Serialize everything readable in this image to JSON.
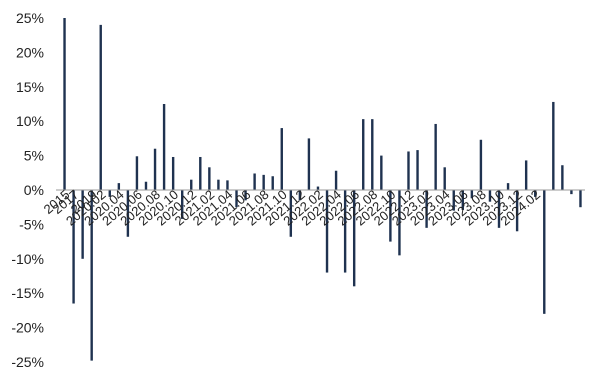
{
  "chart_data": {
    "type": "bar",
    "title": "",
    "xlabel": "",
    "ylabel": "",
    "ylim": [
      -25,
      25
    ],
    "y_ticks": [
      25,
      20,
      15,
      10,
      5,
      0,
      -5,
      -10,
      -15,
      -20,
      -25
    ],
    "y_tick_labels": [
      "25%",
      "20%",
      "15%",
      "10%",
      "5%",
      "0%",
      "-5%",
      "-10%",
      "-15%",
      "-20%",
      "-25%"
    ],
    "grid": false,
    "legend": "none",
    "bar_color": "#1f3250",
    "x_tick_labels": [
      "2015",
      "2017",
      "2019",
      "2020.02",
      "2020.04",
      "2020.06",
      "2020.08",
      "2020.10",
      "2020.12",
      "2021.02",
      "2021.04",
      "2021.06",
      "2021.08",
      "2021.10",
      "2021.12",
      "2022.02",
      "2022.04",
      "2022.06",
      "2022.08",
      "2022.10",
      "2022.12",
      "2023.02",
      "2023.04",
      "2023.06",
      "2023.08",
      "2023.10",
      "2023.12",
      "2024.02"
    ],
    "x_tick_positions": [
      0,
      1,
      3,
      4,
      6,
      8,
      10,
      12,
      14,
      16,
      18,
      20,
      22,
      24,
      26,
      28,
      30,
      32,
      34,
      36,
      38,
      40,
      42,
      44,
      46,
      48,
      50,
      52
    ],
    "values": [
      25.0,
      -16.5,
      -10.0,
      -24.8,
      24.0,
      -1.0,
      1.0,
      -6.8,
      4.9,
      1.2,
      6.0,
      12.5,
      4.8,
      -4.2,
      1.5,
      4.8,
      3.3,
      1.5,
      1.4,
      -2.5,
      -1.5,
      2.4,
      2.2,
      2.0,
      9.0,
      -6.8,
      -1.5,
      7.5,
      0.5,
      -12.0,
      2.8,
      -12.0,
      -14.0,
      10.3,
      10.3,
      5.0,
      -7.5,
      -9.5,
      5.6,
      5.8,
      -5.5,
      9.6,
      3.3,
      -3.0,
      -2.9,
      -1.2,
      7.3,
      -1.7,
      -5.5,
      1.0,
      -6.0,
      4.3,
      -1.0,
      -18.0,
      12.8,
      3.6,
      -0.6,
      -2.5
    ]
  }
}
